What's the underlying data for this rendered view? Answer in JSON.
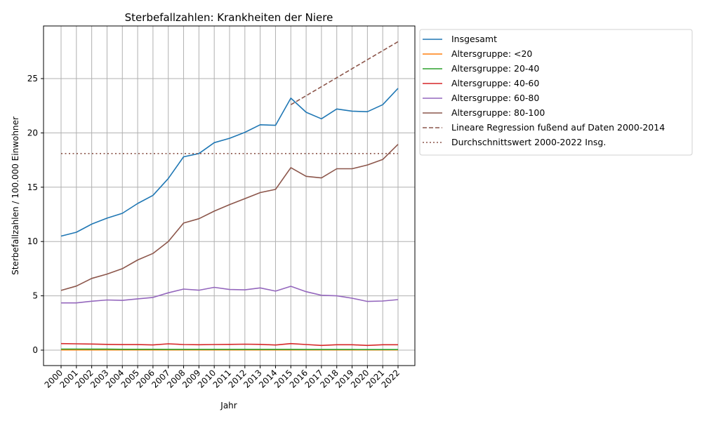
{
  "chart_data": {
    "type": "line",
    "title": "Sterbefallzahlen: Krankheiten der Niere",
    "xlabel": "Jahr",
    "ylabel": "Sterbefallzahlen / 100.000 Einwohner",
    "x": [
      2000,
      2001,
      2002,
      2003,
      2004,
      2005,
      2006,
      2007,
      2008,
      2009,
      2010,
      2011,
      2012,
      2013,
      2014,
      2015,
      2016,
      2017,
      2018,
      2019,
      2020,
      2021,
      2022
    ],
    "ylim": [
      -1.5,
      29.8
    ],
    "yticks": [
      0,
      5,
      10,
      15,
      20,
      25
    ],
    "grid": true,
    "legend_position": "outside upper right",
    "series": [
      {
        "name": "Insgesamt",
        "color": "#1f77b4",
        "style": "solid",
        "values": [
          10.5,
          10.85,
          11.6,
          12.15,
          12.6,
          13.5,
          14.25,
          15.8,
          17.8,
          18.1,
          19.1,
          19.5,
          20.05,
          20.75,
          20.7,
          23.2,
          21.9,
          21.3,
          22.2,
          22.0,
          21.95,
          22.6,
          24.1
        ]
      },
      {
        "name": "Altersgruppe: <20",
        "color": "#ff7f0e",
        "style": "solid",
        "values": [
          0.02,
          0.02,
          0.02,
          0.02,
          0.02,
          0.02,
          0.02,
          0.02,
          0.02,
          0.02,
          0.02,
          0.02,
          0.02,
          0.02,
          0.02,
          0.02,
          0.02,
          0.02,
          0.02,
          0.02,
          0.02,
          0.02,
          0.02
        ]
      },
      {
        "name": "Altersgruppe: 20-40",
        "color": "#2ca02c",
        "style": "solid",
        "values": [
          0.1,
          0.1,
          0.09,
          0.09,
          0.08,
          0.08,
          0.08,
          0.07,
          0.07,
          0.07,
          0.07,
          0.07,
          0.07,
          0.07,
          0.07,
          0.07,
          0.06,
          0.06,
          0.06,
          0.06,
          0.05,
          0.05,
          0.05
        ]
      },
      {
        "name": "Altersgruppe: 40-60",
        "color": "#d62728",
        "style": "solid",
        "values": [
          0.6,
          0.58,
          0.56,
          0.53,
          0.51,
          0.51,
          0.48,
          0.58,
          0.52,
          0.5,
          0.52,
          0.53,
          0.55,
          0.53,
          0.47,
          0.6,
          0.52,
          0.43,
          0.5,
          0.5,
          0.43,
          0.5,
          0.5
        ]
      },
      {
        "name": "Altersgruppe: 60-80",
        "color": "#9467bd",
        "style": "solid",
        "values": [
          4.35,
          4.35,
          4.5,
          4.62,
          4.58,
          4.72,
          4.85,
          5.28,
          5.62,
          5.52,
          5.78,
          5.58,
          5.55,
          5.73,
          5.43,
          5.88,
          5.38,
          5.05,
          5.0,
          4.78,
          4.48,
          4.52,
          4.65
        ]
      },
      {
        "name": "Altersgruppe: 80-100",
        "color": "#8c564b",
        "style": "solid",
        "values": [
          5.5,
          5.9,
          6.6,
          7.0,
          7.5,
          8.3,
          8.9,
          10.0,
          11.7,
          12.1,
          12.8,
          13.4,
          13.95,
          14.5,
          14.8,
          16.8,
          16.0,
          15.85,
          16.7,
          16.7,
          17.05,
          17.55,
          18.95
        ]
      },
      {
        "name": "Lineare Regression fußend auf Daten 2000-2014",
        "color": "#8c564b",
        "style": "dashed",
        "x": [
          2015,
          2022
        ],
        "values": [
          22.6,
          28.4
        ]
      },
      {
        "name": "Durchschnittswert 2000-2022 Insg.",
        "color": "#8c564b",
        "style": "dotted",
        "x": [
          2000,
          2022
        ],
        "values": [
          18.1,
          18.1
        ]
      }
    ]
  }
}
